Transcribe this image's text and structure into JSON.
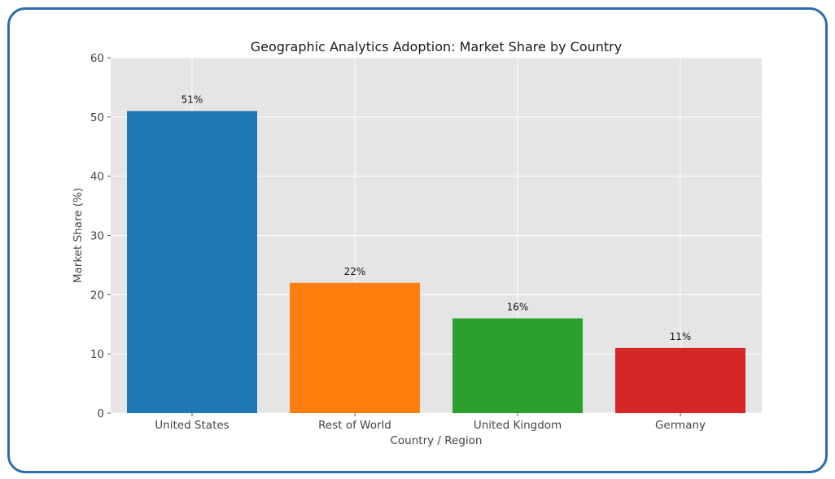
{
  "chart_data": {
    "type": "bar",
    "title": "Geographic Analytics Adoption: Market Share by Country",
    "xlabel": "Country / Region",
    "ylabel": "Market Share (%)",
    "categories": [
      "United States",
      "Rest of World",
      "United Kingdom",
      "Germany"
    ],
    "values": [
      51,
      22,
      16,
      11
    ],
    "value_labels": [
      "51%",
      "22%",
      "16%",
      "11%"
    ],
    "colors": [
      "#1f77b4",
      "#ff7f0e",
      "#2ca02c",
      "#d62728"
    ],
    "ylim": [
      0,
      60
    ],
    "yticks": [
      0,
      10,
      20,
      30,
      40,
      50,
      60
    ],
    "grid": true,
    "background_color": "#e5e5e5",
    "grid_color": "#ffffff",
    "frame_color": "#2a6db0"
  }
}
